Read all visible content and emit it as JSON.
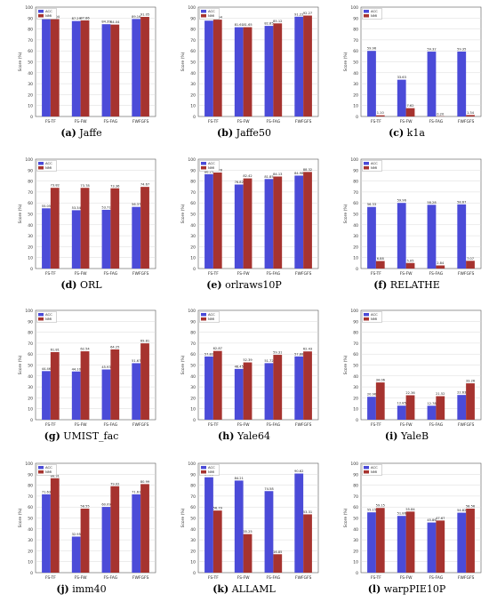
{
  "legend_labels": [
    "ACC",
    "NMI"
  ],
  "ylabel": "Score (%)",
  "colors": {
    "acc": "#4b4bd8",
    "nmi": "#a6332f",
    "grid": "#d9d9d9",
    "axis": "#555555"
  },
  "chart_data": [
    {
      "type": "bar",
      "panel_letter": "(a)",
      "caption": "Jaffe",
      "categories": [
        "FS-TF",
        "FS-FW",
        "FS-FAG",
        "FWFGFS"
      ],
      "series": [
        {
          "name": "ACC",
          "values": [
            89.36,
            87.29,
            84.39,
            89.16
          ]
        },
        {
          "name": "NMI",
          "values": [
            89.04,
            87.86,
            84.04,
            91.05
          ]
        }
      ],
      "data_labels": [
        [
          "89.36",
          "87.29",
          "84.39",
          "89.16"
        ],
        [
          "89.04",
          "87.86",
          "84.04",
          "91.05"
        ]
      ],
      "ylim": [
        0,
        100
      ],
      "legend": "top-left",
      "grid": true
    },
    {
      "type": "bar",
      "panel_letter": "(b)",
      "caption": "Jaffe50",
      "categories": [
        "FS-TF",
        "FS-FW",
        "FS-FAG",
        "FWFGFS"
      ],
      "series": [
        {
          "name": "ACC",
          "values": [
            87.61,
            81.61,
            82.85,
            91.22
          ]
        },
        {
          "name": "NMI",
          "values": [
            88.54,
            81.65,
            85.12,
            92.27
          ]
        }
      ],
      "data_labels": [
        [
          "87.61",
          "81.61",
          "82.85",
          "91.22"
        ],
        [
          "88.54",
          "81.65",
          "85.12",
          "92.27"
        ]
      ],
      "ylim": [
        0,
        100
      ],
      "legend": "top-left",
      "grid": true
    },
    {
      "type": "bar",
      "panel_letter": "(c)",
      "caption": "k1a",
      "categories": [
        "FS-TF",
        "FS-FW",
        "FS-FAG",
        "FWFGFS"
      ],
      "series": [
        {
          "name": "ACC",
          "values": [
            59.96,
            33.63,
            59.32,
            59.35
          ]
        },
        {
          "name": "NMI",
          "values": [
            1.1,
            7.62,
            0.2,
            1.34
          ]
        }
      ],
      "data_labels": [
        [
          "59.96",
          "33.63",
          "59.32",
          "59.35"
        ],
        [
          "1.10",
          "7.62",
          "0.20",
          "1.34"
        ]
      ],
      "ylim": [
        0,
        100
      ],
      "legend": "top-left",
      "grid": true
    },
    {
      "type": "bar",
      "panel_letter": "(d)",
      "caption": "ORL",
      "categories": [
        "FS-TF",
        "FS-FW",
        "FS-FAG",
        "FWFGFS"
      ],
      "series": [
        {
          "name": "ACC",
          "values": [
            55.05,
            53.34,
            53.71,
            56.37
          ]
        },
        {
          "name": "NMI",
          "values": [
            73.82,
            73.78,
            73.36,
            74.67
          ]
        }
      ],
      "data_labels": [
        [
          "55.05",
          "53.34",
          "53.71",
          "56.37"
        ],
        [
          "73.82",
          "73.78",
          "73.36",
          "74.67"
        ]
      ],
      "ylim": [
        0,
        100
      ],
      "legend": "top-left",
      "grid": true
    },
    {
      "type": "bar",
      "panel_letter": "(e)",
      "caption": "orlraws10P",
      "categories": [
        "FS-TF",
        "FS-FW",
        "FS-FAG",
        "FWFGFS"
      ],
      "series": [
        {
          "name": "ACC",
          "values": [
            86.25,
            76.82,
            81.85,
            84.98
          ]
        },
        {
          "name": "NMI",
          "values": [
            87.78,
            82.42,
            84.13,
            88.32
          ]
        }
      ],
      "data_labels": [
        [
          "86.25",
          "76.82",
          "81.85",
          "84.98"
        ],
        [
          "87.78",
          "82.42",
          "84.13",
          "88.32"
        ]
      ],
      "ylim": [
        0,
        100
      ],
      "legend": "top-left",
      "grid": true
    },
    {
      "type": "bar",
      "panel_letter": "(f)",
      "caption": "RELATHE",
      "categories": [
        "FS-TF",
        "FS-FW",
        "FS-FAG",
        "FWFGFS"
      ],
      "series": [
        {
          "name": "ACC",
          "values": [
            56.33,
            59.96,
            58.28,
            58.67
          ]
        },
        {
          "name": "NMI",
          "values": [
            6.88,
            5.05,
            2.84,
            7.07
          ]
        }
      ],
      "data_labels": [
        [
          "56.33",
          "59.96",
          "58.28",
          "58.67"
        ],
        [
          "6.88",
          "5.05",
          "2.84",
          "7.07"
        ]
      ],
      "ylim": [
        0,
        100
      ],
      "legend": "top-left",
      "grid": true
    },
    {
      "type": "bar",
      "panel_letter": "(g)",
      "caption": "UMIST_fac",
      "categories": [
        "FS-TF",
        "FS-FW",
        "FS-FAG",
        "FWFGFS"
      ],
      "series": [
        {
          "name": "ACC",
          "values": [
            44.46,
            44.1,
            45.93,
            51.67
          ]
        },
        {
          "name": "NMI",
          "values": [
            61.81,
            62.54,
            64.25,
            69.81
          ]
        }
      ],
      "data_labels": [
        [
          "44.46",
          "44.10",
          "45.93",
          "51.67"
        ],
        [
          "61.81",
          "62.54",
          "64.25",
          "69.81"
        ]
      ],
      "ylim": [
        0,
        100
      ],
      "legend": "top-left",
      "grid": true
    },
    {
      "type": "bar",
      "panel_letter": "(h)",
      "caption": "Yale64",
      "categories": [
        "FS-TF",
        "FS-FW",
        "FS-FAG",
        "FWFGFS"
      ],
      "series": [
        {
          "name": "ACC",
          "values": [
            57.82,
            46.45,
            51.72,
            57.88
          ]
        },
        {
          "name": "NMI",
          "values": [
            62.87,
            52.39,
            59.31,
            62.43
          ]
        }
      ],
      "data_labels": [
        [
          "57.82",
          "46.45",
          "51.72",
          "57.88"
        ],
        [
          "62.87",
          "52.39",
          "59.31",
          "62.43"
        ]
      ],
      "ylim": [
        0,
        100
      ],
      "legend": "top-left",
      "grid": true
    },
    {
      "type": "bar",
      "panel_letter": "(i)",
      "caption": "YaleB",
      "categories": [
        "FS-TF",
        "FS-FW",
        "FS-FAG",
        "FWFGFS"
      ],
      "series": [
        {
          "name": "ACC",
          "values": [
            20.96,
            12.85,
            12.78,
            22.63
          ]
        },
        {
          "name": "NMI",
          "values": [
            34.06,
            22.36,
            21.52,
            33.26
          ]
        }
      ],
      "data_labels": [
        [
          "20.96",
          "12.85",
          "12.78",
          "22.63"
        ],
        [
          "34.06",
          "22.36",
          "21.52",
          "33.26"
        ]
      ],
      "ylim": [
        0,
        100
      ],
      "legend": "top-left",
      "grid": true
    },
    {
      "type": "bar",
      "panel_letter": "(j)",
      "caption": "imm40",
      "categories": [
        "FS-TF",
        "FS-FW",
        "FS-FAG",
        "FWFGFS"
      ],
      "series": [
        {
          "name": "ACC",
          "values": [
            71.63,
            32.95,
            60.09,
            71.61
          ]
        },
        {
          "name": "NMI",
          "values": [
            86.31,
            58.55,
            79.02,
            80.99
          ]
        }
      ],
      "data_labels": [
        [
          "71.63",
          "32.95",
          "60.09",
          "71.61"
        ],
        [
          "86.31",
          "58.55",
          "79.02",
          "80.99"
        ]
      ],
      "ylim": [
        0,
        100
      ],
      "legend": "top-left",
      "grid": true
    },
    {
      "type": "bar",
      "panel_letter": "(k)",
      "caption": "ALLAML",
      "categories": [
        "FS-TF",
        "FS-FW",
        "FS-FAG",
        "FWFGFS"
      ],
      "series": [
        {
          "name": "ACC",
          "values": [
            87.23,
            84.21,
            74.58,
            90.62
          ]
        },
        {
          "name": "NMI",
          "values": [
            56.79,
            35.25,
            16.85,
            53.31
          ]
        }
      ],
      "data_labels": [
        [
          "87.23",
          "84.21",
          "74.58",
          "90.62"
        ],
        [
          "56.79",
          "35.25",
          "16.85",
          "53.31"
        ]
      ],
      "ylim": [
        0,
        100
      ],
      "legend": "top-left",
      "grid": true
    },
    {
      "type": "bar",
      "panel_letter": "(l)",
      "caption": "warpPIE10P",
      "categories": [
        "FS-TF",
        "FS-FW",
        "FS-FAG",
        "FWFGFS"
      ],
      "series": [
        {
          "name": "ACC",
          "values": [
            55.15,
            51.86,
            45.86,
            54.82
          ]
        },
        {
          "name": "NMI",
          "values": [
            59.15,
            55.84,
            47.67,
            58.56
          ]
        }
      ],
      "data_labels": [
        [
          "55.15",
          "51.86",
          "45.86",
          "54.82"
        ],
        [
          "59.15",
          "55.84",
          "47.67",
          "58.56"
        ]
      ],
      "ylim": [
        0,
        100
      ],
      "legend": "top-left",
      "grid": true
    }
  ]
}
